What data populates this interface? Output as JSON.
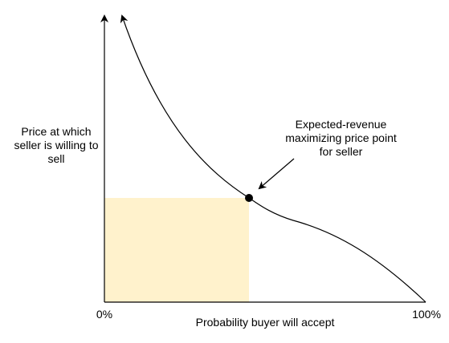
{
  "diagram": {
    "y_axis_title": "Price at which seller is willing to sell",
    "x_axis_title": "Probability buyer will accept",
    "x_tick_min": "0%",
    "x_tick_max": "100%",
    "annotation": "Expected-revenue maximizing price point for seller",
    "colors": {
      "axis": "#000000",
      "curve": "#000000",
      "revenue_area": "#fff2cc",
      "optimal_point": "#000000"
    }
  }
}
